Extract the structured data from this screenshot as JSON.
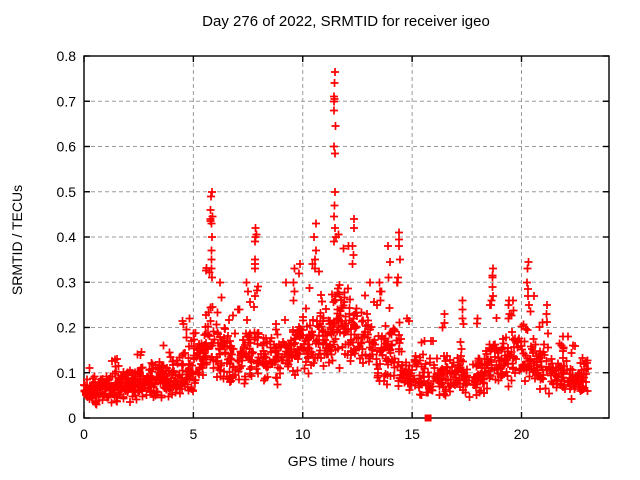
{
  "chart_data": {
    "type": "scatter",
    "title": "Day 276 of 2022, SRMTID for receiver igeo",
    "xlabel": "GPS time / hours",
    "ylabel": "SRMTID / TECUs",
    "xlim": [
      0,
      24
    ],
    "ylim": [
      0,
      0.8
    ],
    "grid": true,
    "legend": "none",
    "marker": "plus",
    "colors": {
      "points": "#ff0000",
      "grid": "#9b9b9b",
      "axis": "#000000",
      "background": "#ffffff",
      "text": "#000000"
    },
    "xticks": [
      {
        "v": 0,
        "label": "0"
      },
      {
        "v": 5,
        "label": "5"
      },
      {
        "v": 10,
        "label": "10"
      },
      {
        "v": 15,
        "label": "15"
      },
      {
        "v": 20,
        "label": "20"
      }
    ],
    "yticks": [
      {
        "v": 0.0,
        "label": "0"
      },
      {
        "v": 0.1,
        "label": "0.1"
      },
      {
        "v": 0.2,
        "label": "0.2"
      },
      {
        "v": 0.3,
        "label": "0.3"
      },
      {
        "v": 0.4,
        "label": "0.4"
      },
      {
        "v": 0.5,
        "label": "0.5"
      },
      {
        "v": 0.6,
        "label": "0.6"
      },
      {
        "v": 0.7,
        "label": "0.7"
      },
      {
        "v": 0.8,
        "label": "0.8"
      }
    ],
    "data_extent": {
      "t_start": 0.0,
      "t_end": 23.05,
      "y_min": 0.02,
      "y_max": 0.765
    },
    "density_bins": [
      {
        "t0": 0.0,
        "t1": 0.5,
        "n": 40,
        "c": 0.06,
        "s": 0.035,
        "max": 0.11
      },
      {
        "t0": 0.5,
        "t1": 1.0,
        "n": 40,
        "c": 0.06,
        "s": 0.035,
        "max": 0.12
      },
      {
        "t0": 1.0,
        "t1": 1.5,
        "n": 40,
        "c": 0.065,
        "s": 0.04,
        "max": 0.13
      },
      {
        "t0": 1.5,
        "t1": 2.0,
        "n": 40,
        "c": 0.07,
        "s": 0.04,
        "max": 0.13
      },
      {
        "t0": 2.0,
        "t1": 2.5,
        "n": 40,
        "c": 0.07,
        "s": 0.04,
        "max": 0.14
      },
      {
        "t0": 2.5,
        "t1": 3.0,
        "n": 40,
        "c": 0.075,
        "s": 0.04,
        "max": 0.15
      },
      {
        "t0": 3.0,
        "t1": 3.5,
        "n": 40,
        "c": 0.08,
        "s": 0.045,
        "max": 0.15
      },
      {
        "t0": 3.5,
        "t1": 4.0,
        "n": 40,
        "c": 0.085,
        "s": 0.045,
        "max": 0.16
      },
      {
        "t0": 4.0,
        "t1": 4.5,
        "n": 40,
        "c": 0.09,
        "s": 0.05,
        "max": 0.17
      },
      {
        "t0": 4.5,
        "t1": 5.0,
        "n": 40,
        "c": 0.1,
        "s": 0.05,
        "max": 0.22
      },
      {
        "t0": 5.0,
        "t1": 5.5,
        "n": 35,
        "c": 0.13,
        "s": 0.07,
        "max": 0.3
      },
      {
        "t0": 5.5,
        "t1": 6.1,
        "n": 45,
        "c": 0.16,
        "s": 0.09,
        "max": 0.36
      },
      {
        "t0": 6.1,
        "t1": 6.6,
        "n": 35,
        "c": 0.15,
        "s": 0.08,
        "max": 0.3
      },
      {
        "t0": 6.6,
        "t1": 7.4,
        "n": 50,
        "c": 0.12,
        "s": 0.06,
        "max": 0.24
      },
      {
        "t0": 7.4,
        "t1": 8.1,
        "n": 45,
        "c": 0.14,
        "s": 0.08,
        "max": 0.3
      },
      {
        "t0": 8.1,
        "t1": 9.0,
        "n": 55,
        "c": 0.13,
        "s": 0.06,
        "max": 0.24
      },
      {
        "t0": 9.0,
        "t1": 9.8,
        "n": 50,
        "c": 0.15,
        "s": 0.07,
        "max": 0.3
      },
      {
        "t0": 9.8,
        "t1": 10.8,
        "n": 65,
        "c": 0.17,
        "s": 0.08,
        "max": 0.34
      },
      {
        "t0": 10.8,
        "t1": 11.3,
        "n": 35,
        "c": 0.18,
        "s": 0.08,
        "max": 0.33
      },
      {
        "t0": 11.3,
        "t1": 11.7,
        "n": 32,
        "c": 0.21,
        "s": 0.11,
        "max": 0.45
      },
      {
        "t0": 11.7,
        "t1": 12.1,
        "n": 28,
        "c": 0.2,
        "s": 0.1,
        "max": 0.38
      },
      {
        "t0": 12.1,
        "t1": 12.6,
        "n": 32,
        "c": 0.18,
        "s": 0.09,
        "max": 0.36
      },
      {
        "t0": 12.6,
        "t1": 13.3,
        "n": 42,
        "c": 0.17,
        "s": 0.08,
        "max": 0.3
      },
      {
        "t0": 13.3,
        "t1": 13.9,
        "n": 38,
        "c": 0.14,
        "s": 0.07,
        "max": 0.28
      },
      {
        "t0": 13.9,
        "t1": 14.5,
        "n": 38,
        "c": 0.14,
        "s": 0.08,
        "max": 0.3
      },
      {
        "t0": 14.5,
        "t1": 15.3,
        "n": 42,
        "c": 0.1,
        "s": 0.05,
        "max": 0.22
      },
      {
        "t0": 15.3,
        "t1": 16.2,
        "n": 48,
        "c": 0.085,
        "s": 0.05,
        "max": 0.17
      },
      {
        "t0": 16.2,
        "t1": 17.2,
        "n": 58,
        "c": 0.09,
        "s": 0.05,
        "max": 0.2
      },
      {
        "t0": 17.2,
        "t1": 18.3,
        "n": 62,
        "c": 0.09,
        "s": 0.05,
        "max": 0.22
      },
      {
        "t0": 18.3,
        "t1": 19.0,
        "n": 42,
        "c": 0.12,
        "s": 0.06,
        "max": 0.25
      },
      {
        "t0": 19.0,
        "t1": 20.0,
        "n": 58,
        "c": 0.13,
        "s": 0.07,
        "max": 0.26
      },
      {
        "t0": 20.0,
        "t1": 20.6,
        "n": 36,
        "c": 0.13,
        "s": 0.07,
        "max": 0.27
      },
      {
        "t0": 20.6,
        "t1": 21.4,
        "n": 48,
        "c": 0.11,
        "s": 0.06,
        "max": 0.23
      },
      {
        "t0": 21.4,
        "t1": 22.2,
        "n": 48,
        "c": 0.095,
        "s": 0.05,
        "max": 0.18
      },
      {
        "t0": 22.2,
        "t1": 23.05,
        "n": 50,
        "c": 0.085,
        "s": 0.045,
        "max": 0.16
      }
    ],
    "spike_columns": [
      {
        "t": 5.82,
        "values": [
          0.5,
          0.49,
          0.46,
          0.445,
          0.44,
          0.435,
          0.43,
          0.4,
          0.37,
          0.35,
          0.33,
          0.31
        ]
      },
      {
        "t": 7.85,
        "values": [
          0.42,
          0.405,
          0.4,
          0.39,
          0.35,
          0.34,
          0.33,
          0.27
        ]
      },
      {
        "t": 9.62,
        "values": [
          0.33,
          0.3,
          0.28,
          0.26
        ]
      },
      {
        "t": 10.55,
        "values": [
          0.43,
          0.4,
          0.37,
          0.35,
          0.33
        ]
      },
      {
        "t": 11.47,
        "values": [
          0.765,
          0.74,
          0.71,
          0.705,
          0.7,
          0.68,
          0.645,
          0.6,
          0.585,
          0.5,
          0.47,
          0.445,
          0.42,
          0.4
        ]
      },
      {
        "t": 12.3,
        "values": [
          0.44,
          0.42,
          0.38,
          0.36,
          0.34
        ]
      },
      {
        "t": 13.55,
        "values": [
          0.3,
          0.28,
          0.26
        ]
      },
      {
        "t": 13.95,
        "values": [
          0.38,
          0.345,
          0.31
        ]
      },
      {
        "t": 14.4,
        "values": [
          0.41,
          0.395,
          0.38,
          0.35,
          0.31
        ]
      },
      {
        "t": 16.5,
        "values": [
          0.23,
          0.21
        ]
      },
      {
        "t": 17.3,
        "values": [
          0.26,
          0.24,
          0.22
        ]
      },
      {
        "t": 18.65,
        "values": [
          0.33,
          0.315,
          0.31,
          0.29,
          0.27,
          0.26,
          0.25
        ]
      },
      {
        "t": 19.45,
        "values": [
          0.25,
          0.23,
          0.22
        ]
      },
      {
        "t": 20.3,
        "values": [
          0.345,
          0.33,
          0.3,
          0.285,
          0.27,
          0.25
        ]
      },
      {
        "t": 21.15,
        "values": [
          0.25,
          0.23
        ]
      }
    ],
    "special_points": [
      {
        "x": 15.73,
        "y": 0.0,
        "marker": "filled-square",
        "color": "#ff0000"
      }
    ]
  }
}
